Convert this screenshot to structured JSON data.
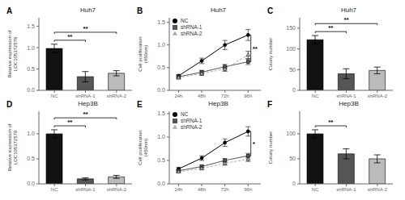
{
  "chart_data": [
    {
      "type": "bar",
      "panel_label": "A",
      "title": "Huh7",
      "ylabel": "Relative expression of\nLOC105372579",
      "categories": [
        "NC",
        "shRNA-1",
        "shRNA-2"
      ],
      "values": [
        0.98,
        0.32,
        0.4
      ],
      "errors": [
        0.1,
        0.12,
        0.06
      ],
      "colors": [
        "#111111",
        "#555555",
        "#bbbbbb"
      ],
      "ylim": [
        0,
        1.7
      ],
      "yticks": [
        {
          "value": 0,
          "label": "0.0"
        },
        0.5,
        {
          "value": 1.0,
          "label": "1.0"
        },
        1.5
      ],
      "grid": false,
      "annotations": [
        {
          "text": "**",
          "from": "NC",
          "to": "shRNA-1"
        },
        {
          "text": "**",
          "from": "NC",
          "to": "shRNA-2"
        }
      ]
    },
    {
      "type": "line",
      "panel_label": "B",
      "title": "Huh7",
      "ylabel": "Cell proliferation\n(450nm)",
      "categories": [
        "24h",
        "48h",
        "72h",
        "96h"
      ],
      "series": [
        {
          "name": "NC",
          "color": "#000000",
          "marker": "circle",
          "line_style": "solid",
          "values": [
            0.32,
            0.65,
            1.0,
            1.22
          ],
          "errors": [
            0.03,
            0.06,
            0.1,
            0.12
          ]
        },
        {
          "name": "shRNA-1",
          "color": "#555555",
          "marker": "square",
          "line_style": "solid",
          "values": [
            0.3,
            0.4,
            0.52,
            0.63
          ],
          "errors": [
            0.03,
            0.04,
            0.05,
            0.06
          ]
        },
        {
          "name": "shRNA-2",
          "color": "#aaaaaa",
          "marker": "triangle",
          "line_style": "dashed",
          "values": [
            0.28,
            0.37,
            0.47,
            0.78
          ],
          "errors": [
            0.03,
            0.04,
            0.05,
            0.08
          ]
        }
      ],
      "ylim": [
        0,
        1.6
      ],
      "yticks": [
        {
          "value": 0,
          "label": "0.0"
        },
        0.5,
        {
          "value": 1.0,
          "label": "1.0"
        },
        1.5
      ],
      "grid": false,
      "legend": "upper left",
      "annotations": [
        {
          "text": "**",
          "from": "NC",
          "to": "shRNA-1"
        }
      ]
    },
    {
      "type": "bar",
      "panel_label": "C",
      "title": "Huh7",
      "ylabel": "Colony number",
      "categories": [
        "NC",
        "shRNA-1",
        "shRNA-2"
      ],
      "values": [
        122,
        40,
        48
      ],
      "errors": [
        10,
        12,
        8
      ],
      "colors": [
        "#111111",
        "#555555",
        "#bbbbbb"
      ],
      "ylim": [
        0,
        175
      ],
      "yticks": [
        0,
        50,
        100,
        150
      ],
      "grid": false,
      "annotations": [
        {
          "text": "**",
          "from": "NC",
          "to": "shRNA-1"
        },
        {
          "text": "**",
          "from": "NC",
          "to": "shRNA-2"
        }
      ]
    },
    {
      "type": "bar",
      "panel_label": "D",
      "title": "Hep3B",
      "ylabel": "Relative expression of\nLOC105372579",
      "categories": [
        "NC",
        "shRNA-1",
        "shRNA-2"
      ],
      "values": [
        1.0,
        0.1,
        0.14
      ],
      "errors": [
        0.08,
        0.02,
        0.03
      ],
      "colors": [
        "#111111",
        "#555555",
        "#bbbbbb"
      ],
      "ylim": [
        0,
        1.45
      ],
      "yticks": [
        {
          "value": 0,
          "label": "0.0"
        },
        0.5,
        {
          "value": 1.0,
          "label": "1.0"
        }
      ],
      "grid": false,
      "annotations": [
        {
          "text": "**",
          "from": "NC",
          "to": "shRNA-1"
        },
        {
          "text": "**",
          "from": "NC",
          "to": "shRNA-2"
        }
      ]
    },
    {
      "type": "line",
      "panel_label": "E",
      "title": "Hep3B",
      "ylabel": "Cell proliferation\n(450nm)",
      "categories": [
        "24h",
        "48h",
        "72h",
        "96h"
      ],
      "series": [
        {
          "name": "NC",
          "color": "#000000",
          "marker": "circle",
          "line_style": "solid",
          "values": [
            0.32,
            0.55,
            0.88,
            1.12
          ],
          "errors": [
            0.03,
            0.05,
            0.08,
            0.1
          ]
        },
        {
          "name": "shRNA-1",
          "color": "#555555",
          "marker": "square",
          "line_style": "solid",
          "values": [
            0.28,
            0.37,
            0.5,
            0.6
          ],
          "errors": [
            0.02,
            0.03,
            0.04,
            0.05
          ]
        },
        {
          "name": "shRNA-2",
          "color": "#aaaaaa",
          "marker": "triangle",
          "line_style": "dashed",
          "values": [
            0.26,
            0.33,
            0.44,
            0.53
          ],
          "errors": [
            0.02,
            0.03,
            0.04,
            0.05
          ]
        }
      ],
      "ylim": [
        0,
        1.55
      ],
      "yticks": [
        {
          "value": 0,
          "label": "0.0"
        },
        0.5,
        {
          "value": 1.0,
          "label": "1.0"
        },
        1.5
      ],
      "grid": false,
      "legend": "upper left",
      "annotations": [
        {
          "text": "*",
          "from": "NC",
          "to": "shRNA-1"
        }
      ]
    },
    {
      "type": "bar",
      "panel_label": "F",
      "title": "Hep3B",
      "ylabel": "Colony number",
      "categories": [
        "NC",
        "shRNA-1",
        "shRNA-2"
      ],
      "values": [
        100,
        60,
        50
      ],
      "errors": [
        8,
        10,
        8
      ],
      "colors": [
        "#111111",
        "#555555",
        "#bbbbbb"
      ],
      "ylim": [
        0,
        145
      ],
      "yticks": [
        0,
        50,
        100
      ],
      "grid": false,
      "annotations": [
        {
          "text": "**",
          "from": "NC",
          "to": "shRNA-1"
        }
      ]
    }
  ]
}
